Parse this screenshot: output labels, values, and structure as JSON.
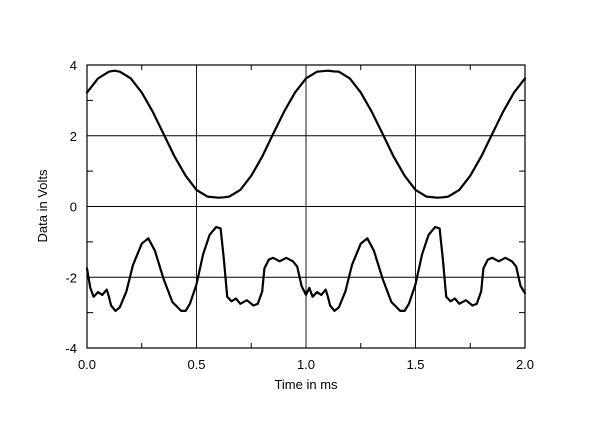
{
  "chart_data": {
    "type": "line",
    "xlabel": "Time in ms",
    "ylabel": "Data in Volts",
    "xlim": [
      0.0,
      2.0
    ],
    "ylim": [
      -4,
      4
    ],
    "xticks": [
      "0.0",
      "0.5",
      "1.0",
      "1.5",
      "2.0"
    ],
    "yticks": [
      "4",
      "2",
      "0",
      "-2",
      "-4"
    ],
    "grid": true,
    "series": [
      {
        "x": [
          0.0,
          0.05,
          0.1,
          0.125,
          0.15,
          0.2,
          0.25,
          0.3,
          0.35,
          0.4,
          0.45,
          0.5,
          0.55,
          0.6,
          0.625,
          0.65,
          0.7,
          0.75,
          0.8,
          0.85,
          0.9,
          0.95,
          1.0,
          1.05,
          1.1,
          1.125,
          1.15,
          1.2,
          1.25,
          1.3,
          1.35,
          1.4,
          1.45,
          1.5,
          1.55,
          1.6,
          1.625,
          1.65,
          1.7,
          1.75,
          1.8,
          1.85,
          1.9,
          1.95,
          2.0
        ],
        "values": [
          3.22,
          3.62,
          3.81,
          3.84,
          3.81,
          3.62,
          3.22,
          2.68,
          2.05,
          1.41,
          0.87,
          0.47,
          0.28,
          0.25,
          0.26,
          0.28,
          0.47,
          0.87,
          1.41,
          2.05,
          2.68,
          3.22,
          3.62,
          3.81,
          3.84,
          3.82,
          3.81,
          3.62,
          3.22,
          2.68,
          2.05,
          1.41,
          0.87,
          0.47,
          0.28,
          0.25,
          0.26,
          0.28,
          0.47,
          0.87,
          1.41,
          2.05,
          2.68,
          3.22,
          3.62
        ]
      },
      {
        "x": [
          0.0,
          0.015,
          0.03,
          0.05,
          0.07,
          0.09,
          0.1,
          0.11,
          0.13,
          0.15,
          0.18,
          0.21,
          0.25,
          0.28,
          0.31,
          0.35,
          0.39,
          0.43,
          0.45,
          0.47,
          0.5,
          0.53,
          0.56,
          0.59,
          0.61,
          0.625,
          0.64,
          0.66,
          0.68,
          0.7,
          0.73,
          0.76,
          0.78,
          0.8,
          0.81,
          0.83,
          0.85,
          0.88,
          0.91,
          0.94,
          0.96,
          0.98,
          1.0,
          1.015,
          1.03,
          1.05,
          1.07,
          1.09,
          1.1,
          1.11,
          1.13,
          1.15,
          1.18,
          1.21,
          1.25,
          1.28,
          1.31,
          1.35,
          1.39,
          1.43,
          1.45,
          1.47,
          1.5,
          1.53,
          1.56,
          1.59,
          1.61,
          1.625,
          1.64,
          1.66,
          1.68,
          1.7,
          1.73,
          1.76,
          1.78,
          1.8,
          1.81,
          1.83,
          1.85,
          1.88,
          1.91,
          1.94,
          1.96,
          1.98,
          2.0
        ],
        "values": [
          -1.75,
          -2.3,
          -2.55,
          -2.42,
          -2.5,
          -2.35,
          -2.55,
          -2.8,
          -2.95,
          -2.85,
          -2.4,
          -1.65,
          -1.05,
          -0.9,
          -1.25,
          -2.05,
          -2.7,
          -2.95,
          -2.95,
          -2.75,
          -2.2,
          -1.35,
          -0.8,
          -0.58,
          -0.62,
          -1.5,
          -2.55,
          -2.68,
          -2.6,
          -2.75,
          -2.65,
          -2.8,
          -2.75,
          -2.4,
          -1.75,
          -1.5,
          -1.45,
          -1.55,
          -1.45,
          -1.55,
          -1.7,
          -2.25,
          -2.5,
          -2.3,
          -2.55,
          -2.42,
          -2.5,
          -2.35,
          -2.55,
          -2.8,
          -2.95,
          -2.85,
          -2.4,
          -1.65,
          -1.05,
          -0.9,
          -1.25,
          -2.05,
          -2.7,
          -2.95,
          -2.95,
          -2.75,
          -2.2,
          -1.35,
          -0.8,
          -0.58,
          -0.62,
          -1.5,
          -2.55,
          -2.68,
          -2.6,
          -2.75,
          -2.65,
          -2.8,
          -2.75,
          -2.4,
          -1.75,
          -1.5,
          -1.45,
          -1.55,
          -1.45,
          -1.55,
          -1.7,
          -2.25,
          -2.45
        ]
      }
    ]
  }
}
